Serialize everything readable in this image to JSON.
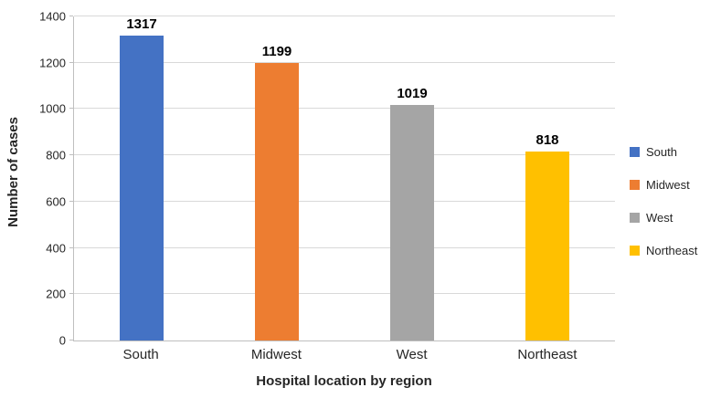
{
  "chart_data": {
    "type": "bar",
    "title": "",
    "categories": [
      "South",
      "Midwest",
      "West",
      "Northeast"
    ],
    "values": [
      1317,
      1199,
      1019,
      818
    ],
    "colors": [
      "#4472C4",
      "#ED7D31",
      "#A5A5A5",
      "#FFC000"
    ],
    "xlabel": "Hospital location by region",
    "ylabel": "Number of cases",
    "ylim": [
      0,
      1400
    ],
    "yticks": [
      0,
      200,
      400,
      600,
      800,
      1000,
      1200,
      1400
    ],
    "grid": true,
    "legend_position": "right",
    "legend": [
      {
        "label": "South",
        "color": "#4472C4"
      },
      {
        "label": "Midwest",
        "color": "#ED7D31"
      },
      {
        "label": "West",
        "color": "#A5A5A5"
      },
      {
        "label": "Northeast",
        "color": "#FFC000"
      }
    ]
  }
}
